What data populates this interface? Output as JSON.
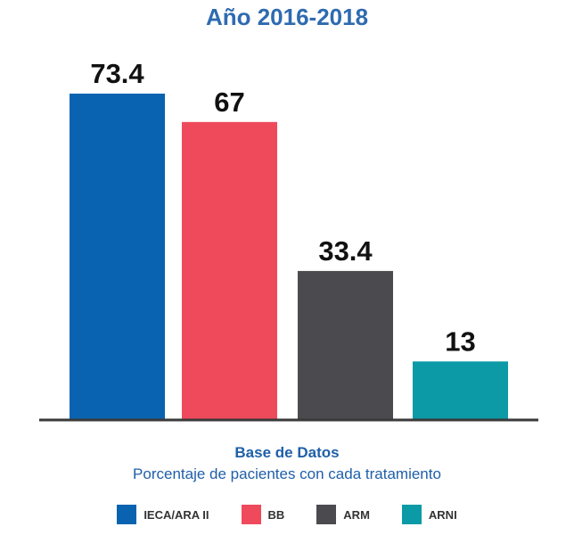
{
  "chart_data": {
    "type": "bar",
    "title": "Año 2016-2018",
    "categories": [
      "IECA/ARA II",
      "BB",
      "ARM",
      "ARNI"
    ],
    "values": [
      73.4,
      67,
      33.4,
      13
    ],
    "value_labels": [
      "73.4",
      "67",
      "33.4",
      "13"
    ],
    "colors": [
      "#0a63b0",
      "#ef4a5c",
      "#4a4a4f",
      "#0b9aa6"
    ],
    "ylim": [
      0,
      73.4
    ],
    "grid": false,
    "legend_position": "bottom",
    "caption_title": "Base de Datos",
    "caption_subtitle": "Porcentaje de pacientes con cada tratamiento"
  }
}
